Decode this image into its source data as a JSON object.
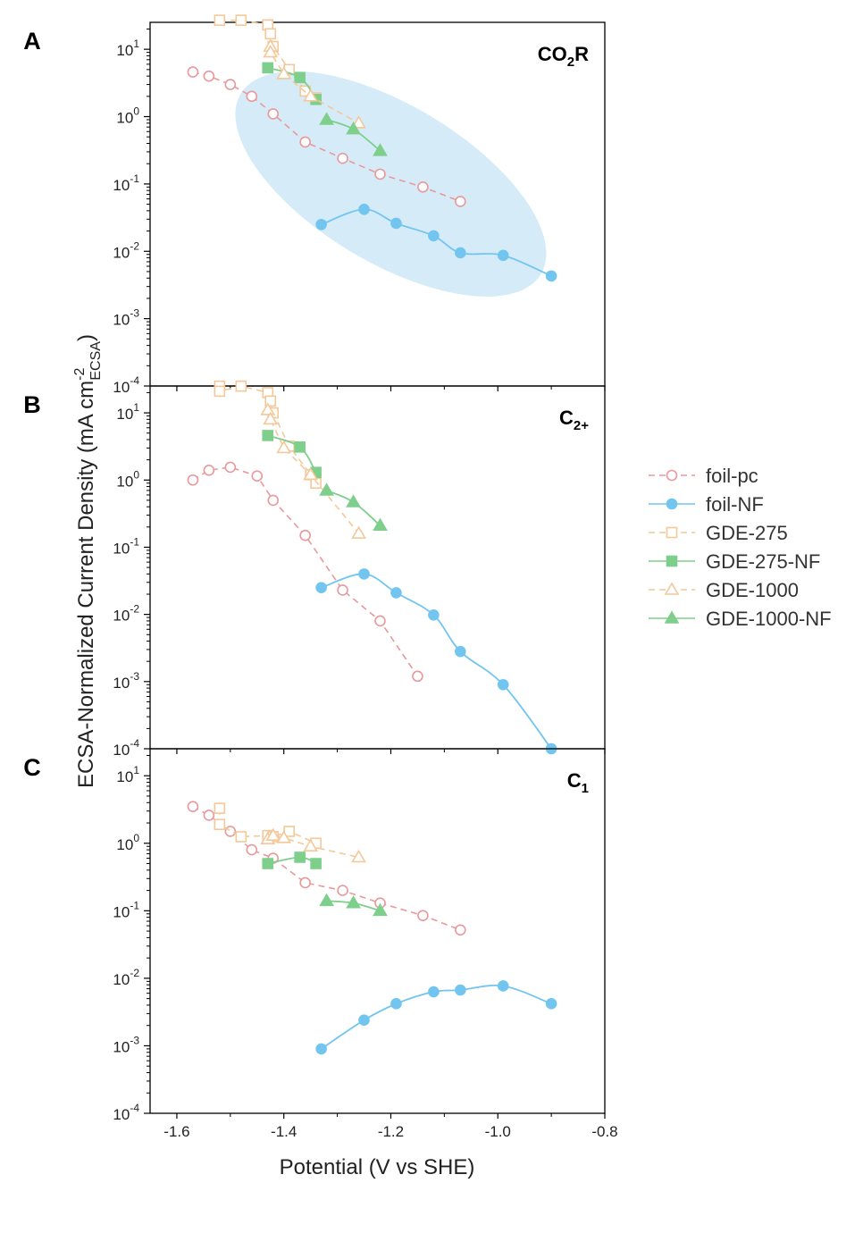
{
  "chart_data": {
    "type": "scatter",
    "xlabel": "Potential (V vs SHE)",
    "ylabel": {
      "main": "ECSA-Normalized Current Density (mA cm",
      "sup": "-2",
      "sub": "ECSA",
      "close": ")"
    },
    "xlim": [
      -1.65,
      -0.8
    ],
    "xticks": [
      -1.6,
      -1.4,
      -1.2,
      -1.0,
      -0.8
    ],
    "xtick_labels": [
      "-1.6",
      "-1.4",
      "-1.2",
      "-1.0",
      "-0.8"
    ],
    "ylim_log10": [
      -4,
      1.4
    ],
    "ytick_exps": [
      -4,
      -3,
      -2,
      -1,
      0,
      1
    ],
    "y_scale": "log",
    "legend": [
      {
        "series": "foil-pc",
        "label": "foil-pc"
      },
      {
        "series": "foil-NF",
        "label": "foil-NF"
      },
      {
        "series": "GDE-275",
        "label": "GDE-275"
      },
      {
        "series": "GDE-275-NF",
        "label": "GDE-275-NF"
      },
      {
        "series": "GDE-1000",
        "label": "GDE-1000"
      },
      {
        "series": "GDE-1000-NF",
        "label": "GDE-1000-NF"
      }
    ],
    "styles": {
      "foil-pc": {
        "color": "#e8999c",
        "marker": "circle",
        "filled": false,
        "dashed": true
      },
      "foil-NF": {
        "color": "#72c5ef",
        "marker": "circle",
        "filled": true,
        "dashed": false
      },
      "GDE-275": {
        "color": "#f4c899",
        "marker": "square",
        "filled": false,
        "dashed": true
      },
      "GDE-275-NF": {
        "color": "#7ecf8c",
        "marker": "square",
        "filled": true,
        "dashed": false
      },
      "GDE-1000": {
        "color": "#f4c899",
        "marker": "triangle",
        "filled": false,
        "dashed": true
      },
      "GDE-1000-NF": {
        "color": "#7ecf8c",
        "marker": "triangle",
        "filled": true,
        "dashed": false
      }
    },
    "panels": [
      {
        "letter": "A",
        "title": {
          "base": "CO",
          "sub": "2",
          "rest": "R"
        },
        "highlight": {
          "cx": -1.2,
          "cy_log": -1.0,
          "note": "blue ellipse highlight"
        },
        "series": [
          {
            "name": "foil-pc",
            "x": [
              -1.57,
              -1.54,
              -1.5,
              -1.46,
              -1.42,
              -1.36,
              -1.29,
              -1.22,
              -1.14,
              -1.07
            ],
            "y": [
              4.6,
              4.0,
              3.0,
              2.0,
              1.1,
              0.42,
              0.24,
              0.14,
              0.09,
              0.055
            ]
          },
          {
            "name": "foil-NF",
            "x": [
              -1.33,
              -1.25,
              -1.19,
              -1.12,
              -1.07,
              -0.99,
              -0.9
            ],
            "y": [
              0.025,
              0.042,
              0.026,
              0.017,
              0.0095,
              0.0087,
              0.0043
            ]
          },
          {
            "name": "GDE-275",
            "x": [
              -1.52,
              -1.48,
              -1.43,
              -1.425,
              -1.42,
              -1.39,
              -1.36,
              -1.34
            ],
            "y": [
              27,
              27,
              23,
              17,
              11,
              5.0,
              2.4,
              1.9
            ]
          },
          {
            "name": "GDE-275-NF",
            "x": [
              -1.43,
              -1.37,
              -1.34
            ],
            "y": [
              5.3,
              3.8,
              1.8
            ]
          },
          {
            "name": "GDE-1000",
            "x": [
              -1.425,
              -1.425,
              -1.4,
              -1.35,
              -1.26
            ],
            "y": [
              11,
              9,
              4.3,
              2.0,
              0.8
            ]
          },
          {
            "name": "GDE-1000-NF",
            "x": [
              -1.32,
              -1.27,
              -1.22
            ],
            "y": [
              0.9,
              0.65,
              0.31
            ]
          }
        ]
      },
      {
        "letter": "B",
        "title": {
          "base": "C",
          "sub": "2+",
          "rest": ""
        },
        "series": [
          {
            "name": "foil-pc",
            "x": [
              -1.57,
              -1.54,
              -1.5,
              -1.45,
              -1.42,
              -1.36,
              -1.29,
              -1.22,
              -1.15
            ],
            "y": [
              1.0,
              1.4,
              1.55,
              1.15,
              0.5,
              0.15,
              0.023,
              0.008,
              0.0012
            ]
          },
          {
            "name": "foil-NF",
            "x": [
              -1.33,
              -1.25,
              -1.19,
              -1.12,
              -1.07,
              -0.99,
              -0.9
            ],
            "y": [
              0.025,
              0.04,
              0.021,
              0.0098,
              0.0028,
              0.0009,
              0.0001
            ]
          },
          {
            "name": "GDE-275",
            "x": [
              -1.52,
              -1.52,
              -1.48,
              -1.43,
              -1.425,
              -1.42,
              -1.39,
              -1.35,
              -1.34
            ],
            "y": [
              25,
              21,
              25,
              20,
              15,
              10,
              3.2,
              1.2,
              0.9
            ]
          },
          {
            "name": "GDE-275-NF",
            "x": [
              -1.43,
              -1.37,
              -1.34
            ],
            "y": [
              4.6,
              3.1,
              1.3
            ]
          },
          {
            "name": "GDE-1000",
            "x": [
              -1.43,
              -1.425,
              -1.4,
              -1.35,
              -1.26
            ],
            "y": [
              11,
              8,
              3.0,
              1.2,
              0.16
            ]
          },
          {
            "name": "GDE-1000-NF",
            "x": [
              -1.32,
              -1.27,
              -1.22
            ],
            "y": [
              0.7,
              0.47,
              0.21
            ]
          }
        ]
      },
      {
        "letter": "C",
        "title": {
          "base": "C",
          "sub": "1",
          "rest": ""
        },
        "series": [
          {
            "name": "foil-pc",
            "x": [
              -1.57,
              -1.54,
              -1.5,
              -1.46,
              -1.42,
              -1.36,
              -1.29,
              -1.22,
              -1.14,
              -1.07
            ],
            "y": [
              3.5,
              2.6,
              1.5,
              0.8,
              0.6,
              0.26,
              0.2,
              0.13,
              0.085,
              0.052
            ]
          },
          {
            "name": "foil-NF",
            "x": [
              -1.33,
              -1.25,
              -1.19,
              -1.12,
              -1.07,
              -0.99,
              -0.9
            ],
            "y": [
              0.0009,
              0.0024,
              0.0042,
              0.0063,
              0.0067,
              0.0077,
              0.0042
            ]
          },
          {
            "name": "GDE-275",
            "x": [
              -1.52,
              -1.52,
              -1.48,
              -1.43,
              -1.42,
              -1.39,
              -1.34
            ],
            "y": [
              3.3,
              1.9,
              1.25,
              1.3,
              1.25,
              1.5,
              1.0
            ]
          },
          {
            "name": "GDE-275-NF",
            "x": [
              -1.43,
              -1.37,
              -1.34
            ],
            "y": [
              0.5,
              0.62,
              0.5
            ]
          },
          {
            "name": "GDE-1000",
            "x": [
              -1.43,
              -1.42,
              -1.4,
              -1.35,
              -1.26
            ],
            "y": [
              1.15,
              1.3,
              1.2,
              0.9,
              0.62
            ]
          },
          {
            "name": "GDE-1000-NF",
            "x": [
              -1.32,
              -1.27,
              -1.22
            ],
            "y": [
              0.14,
              0.13,
              0.1
            ]
          }
        ]
      }
    ]
  }
}
